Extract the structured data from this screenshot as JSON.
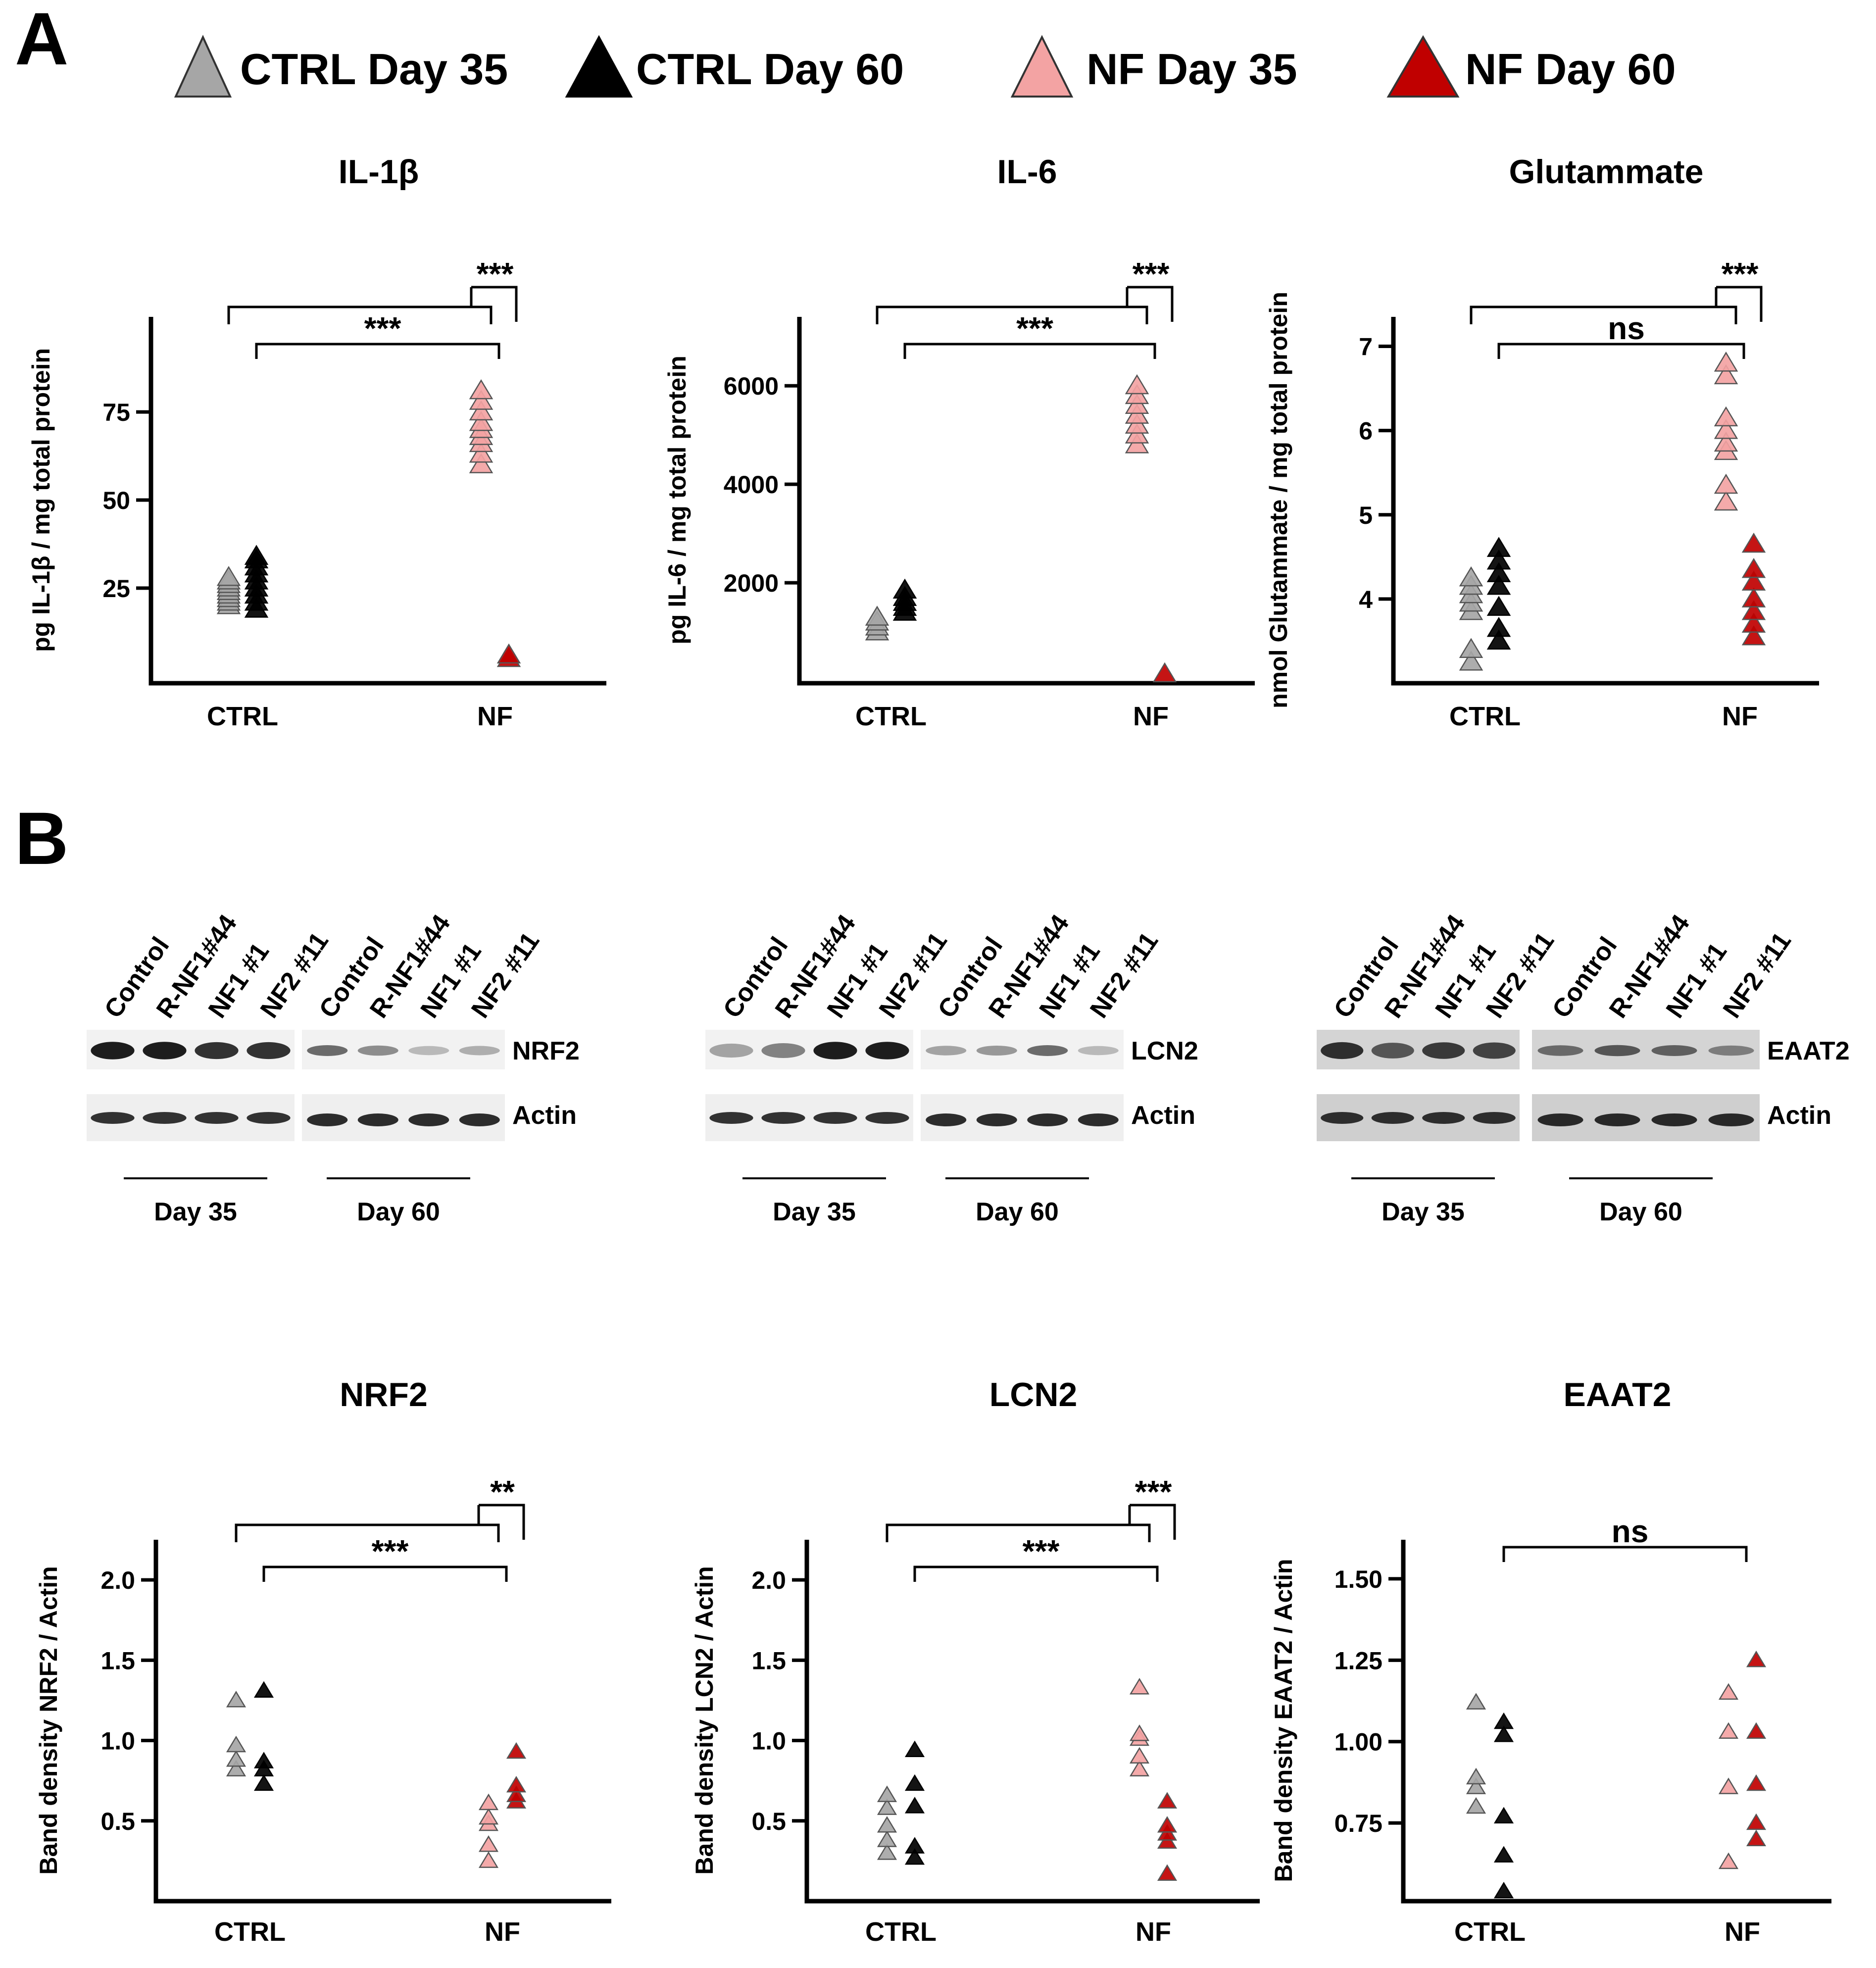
{
  "panel_a_letter": "A",
  "panel_b_letter": "B",
  "colors": {
    "ctrl35": "#a6a6a6",
    "ctrl60": "#000000",
    "nf35": "#f3a3a3",
    "nf60": "#c00000"
  },
  "legend": {
    "ctrl35": "CTRL Day 35",
    "ctrl60": "CTRL Day 60",
    "nf35": "NF Day 35",
    "nf60": "NF Day 60"
  },
  "blots": [
    {
      "lanes_day35": [
        "Control",
        "R-NF1#44",
        "NF1 #1",
        "NF2 #11"
      ],
      "lanes_day60": [
        "Control",
        "R-NF1#44",
        "NF1 #1",
        "NF2 #11"
      ],
      "target": "NRF2",
      "loading": "Actin",
      "day35": "Day 35",
      "day60": "Day 60"
    },
    {
      "lanes_day35": [
        "Control",
        "R-NF1#44",
        "NF1 #1",
        "NF2 #11"
      ],
      "lanes_day60": [
        "Control",
        "R-NF1#44",
        "NF1 #1",
        "NF2 #11"
      ],
      "target": "LCN2",
      "loading": "Actin",
      "day35": "Day 35",
      "day60": "Day 60"
    },
    {
      "lanes_day35": [
        "Control",
        "R-NF1#44",
        "NF1 #1",
        "NF2 #11"
      ],
      "lanes_day60": [
        "Control",
        "R-NF1#44",
        "NF1 #1",
        "NF2 #11"
      ],
      "target": "EAAT2",
      "loading": "Actin",
      "day35": "Day 35",
      "day60": "Day 60"
    }
  ],
  "chart_data": [
    {
      "type": "scatter",
      "title": "IL-1β",
      "ylabel": "pg IL-1β / mg total protein",
      "categories": [
        "CTRL",
        "NF"
      ],
      "ylim": [
        -2,
        102
      ],
      "yticks": [
        "25",
        "50",
        "75"
      ],
      "series": [
        {
          "name": "CTRL Day 35",
          "category": "CTRL",
          "values": [
            20,
            21,
            22,
            23,
            24,
            25,
            26,
            27,
            28
          ]
        },
        {
          "name": "CTRL Day 60",
          "category": "CTRL",
          "values": [
            19,
            21,
            23,
            25,
            27,
            29,
            31,
            33,
            34
          ]
        },
        {
          "name": "NF Day 35",
          "category": "NF",
          "values": [
            60,
            63,
            66,
            68,
            70,
            72,
            75,
            78,
            81
          ]
        },
        {
          "name": "NF Day 60",
          "category": "NF",
          "values": [
            5,
            6
          ]
        }
      ],
      "significance": [
        {
          "from": "CTRL",
          "to": "NF",
          "label": "***"
        },
        {
          "within": "NF",
          "label": "***"
        }
      ]
    },
    {
      "type": "scatter",
      "title": "IL-6",
      "ylabel": "pg IL-6 / mg total protein",
      "categories": [
        "CTRL",
        "NF"
      ],
      "ylim": [
        -40,
        7400
      ],
      "yticks": [
        "2000",
        "4000",
        "6000"
      ],
      "series": [
        {
          "name": "CTRL Day 35",
          "category": "CTRL",
          "values": [
            1000,
            1100,
            1200,
            1300
          ]
        },
        {
          "name": "CTRL Day 60",
          "category": "CTRL",
          "values": [
            1400,
            1500,
            1600,
            1700,
            1850
          ]
        },
        {
          "name": "NF Day 35",
          "category": "NF",
          "values": [
            4800,
            5000,
            5200,
            5400,
            5600,
            5800,
            6000
          ]
        },
        {
          "name": "NF Day 60",
          "category": "NF",
          "values": [
            150
          ]
        }
      ],
      "significance": [
        {
          "from": "CTRL",
          "to": "NF",
          "label": "***"
        },
        {
          "within": "NF",
          "label": "***"
        }
      ]
    },
    {
      "type": "scatter",
      "title": "Glutammate",
      "ylabel": "nmol Glutammate / mg total protein",
      "categories": [
        "CTRL",
        "NF"
      ],
      "ylim": [
        3.0,
        7.35
      ],
      "yticks": [
        "4",
        "5",
        "6",
        "7"
      ],
      "series": [
        {
          "name": "CTRL Day 35",
          "category": "CTRL",
          "values": [
            3.25,
            3.4,
            3.85,
            3.95,
            4.05,
            4.15,
            4.25
          ]
        },
        {
          "name": "CTRL Day 60",
          "category": "CTRL",
          "values": [
            3.5,
            3.65,
            3.9,
            4.15,
            4.3,
            4.45,
            4.6
          ]
        },
        {
          "name": "NF Day 35",
          "category": "NF",
          "values": [
            5.15,
            5.35,
            5.75,
            5.85,
            6.0,
            6.15,
            6.65,
            6.8
          ]
        },
        {
          "name": "NF Day 60",
          "category": "NF",
          "values": [
            3.55,
            3.7,
            3.85,
            4.0,
            4.2,
            4.35,
            4.65
          ]
        }
      ],
      "significance": [
        {
          "from": "CTRL",
          "to": "NF",
          "label": "ns"
        },
        {
          "within": "NF",
          "label": "***"
        }
      ]
    },
    {
      "type": "scatter",
      "title": "NRF2",
      "ylabel": "Band density  NRF2  /  Actin",
      "categories": [
        "CTRL",
        "NF"
      ],
      "ylim": [
        0.0,
        2.25
      ],
      "yticks": [
        "0.5",
        "1.0",
        "1.5",
        "2.0"
      ],
      "series": [
        {
          "name": "CTRL Day 35",
          "category": "CTRL",
          "values": [
            0.82,
            0.88,
            0.97,
            1.25
          ]
        },
        {
          "name": "CTRL Day 60",
          "category": "CTRL",
          "values": [
            0.73,
            0.82,
            0.87,
            1.31
          ]
        },
        {
          "name": "NF Day 35",
          "category": "NF",
          "values": [
            0.25,
            0.35,
            0.48,
            0.52,
            0.61
          ]
        },
        {
          "name": "NF Day 60",
          "category": "NF",
          "values": [
            0.62,
            0.66,
            0.72,
            0.93
          ]
        }
      ],
      "significance": [
        {
          "from": "CTRL",
          "to": "NF",
          "label": "***"
        },
        {
          "within": "NF",
          "label": "**"
        }
      ]
    },
    {
      "type": "scatter",
      "title": "LCN2",
      "ylabel": "Band density  LCN2  /  Actin",
      "categories": [
        "CTRL",
        "NF"
      ],
      "ylim": [
        0.0,
        2.25
      ],
      "yticks": [
        "0.5",
        "1.0",
        "1.5",
        "2.0"
      ],
      "series": [
        {
          "name": "CTRL Day 35",
          "category": "CTRL",
          "values": [
            0.3,
            0.38,
            0.47,
            0.58,
            0.66
          ]
        },
        {
          "name": "CTRL Day 60",
          "category": "CTRL",
          "values": [
            0.27,
            0.34,
            0.59,
            0.73,
            0.94
          ]
        },
        {
          "name": "NF Day 35",
          "category": "NF",
          "values": [
            0.82,
            0.9,
            1.01,
            1.04,
            1.33
          ]
        },
        {
          "name": "NF Day 60",
          "category": "NF",
          "values": [
            0.17,
            0.37,
            0.42,
            0.47,
            0.62
          ]
        }
      ],
      "significance": [
        {
          "from": "CTRL",
          "to": "NF",
          "label": "***"
        },
        {
          "within": "NF",
          "label": "***"
        }
      ]
    },
    {
      "type": "scatter",
      "title": "EAAT2",
      "ylabel": "Band density  EAAT2  /  Actin",
      "categories": [
        "CTRL",
        "NF"
      ],
      "ylim": [
        0.51,
        1.62
      ],
      "yticks": [
        "0.75",
        "1.00",
        "1.25",
        "1.50"
      ],
      "series": [
        {
          "name": "CTRL Day 35",
          "category": "CTRL",
          "values": [
            0.8,
            0.86,
            0.89,
            1.12
          ]
        },
        {
          "name": "CTRL Day 60",
          "category": "CTRL",
          "values": [
            0.54,
            0.65,
            0.77,
            1.02,
            1.06
          ]
        },
        {
          "name": "NF Day 35",
          "category": "NF",
          "values": [
            0.63,
            0.86,
            1.03,
            1.15
          ]
        },
        {
          "name": "NF Day 60",
          "category": "NF",
          "values": [
            0.7,
            0.75,
            0.87,
            1.03,
            1.25
          ]
        }
      ],
      "significance": [
        {
          "from": "CTRL",
          "to": "NF",
          "label": "ns"
        }
      ]
    }
  ]
}
